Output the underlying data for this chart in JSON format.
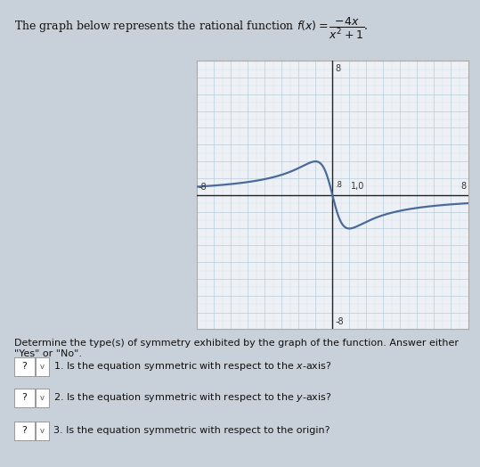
{
  "xlim": [
    -8,
    8
  ],
  "ylim": [
    -8,
    8
  ],
  "grid_color": "#b8ccd8",
  "background_color": "#c8d0da",
  "plot_bg_color": "#edf1f5",
  "curve_color": "#4a6a9a",
  "curve_linewidth": 1.6,
  "axis_color": "#222222",
  "axis_linewidth": 1.0,
  "text_color": "#111111",
  "label_fontsize": 7,
  "title_fontsize": 9,
  "determine_fontsize": 8,
  "q_fontsize": 8,
  "fig_width": 5.39,
  "fig_height": 5.24,
  "dpi": 100
}
